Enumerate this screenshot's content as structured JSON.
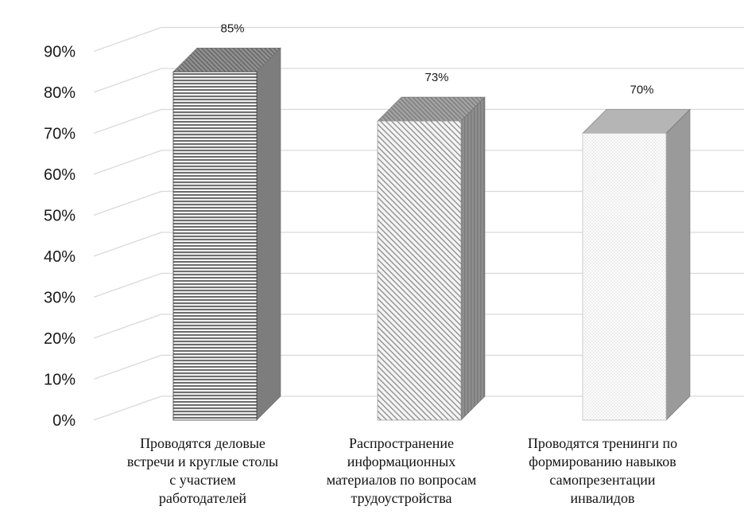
{
  "chart_data": {
    "type": "bar",
    "categories": [
      [
        "Проводятся деловые",
        "встречи и круглые столы",
        "с участием",
        "работодателей"
      ],
      [
        "Распространение",
        "информационных",
        "материалов по вопросам",
        "трудоустройства"
      ],
      [
        "Проводятся тренинги по",
        "формированию навыков",
        "самопрезентации",
        "инвалидов"
      ]
    ],
    "values": [
      85,
      73,
      70
    ],
    "data_labels": [
      "85%",
      "73%",
      "70%"
    ],
    "y_ticks": [
      "0%",
      "10%",
      "20%",
      "30%",
      "40%",
      "50%",
      "60%",
      "70%",
      "80%",
      "90%"
    ],
    "ylim": [
      0,
      90
    ],
    "grid": true,
    "legend": "none",
    "style": "3d-column",
    "patterns": [
      "horizontal-lines",
      "diagonal-hatch",
      "fine-dots"
    ],
    "colors": {
      "grid": "#d9d9d9",
      "front_dark": "#7f7f7f",
      "side": "#8c8c8c",
      "top": "#a6a6a6"
    }
  }
}
